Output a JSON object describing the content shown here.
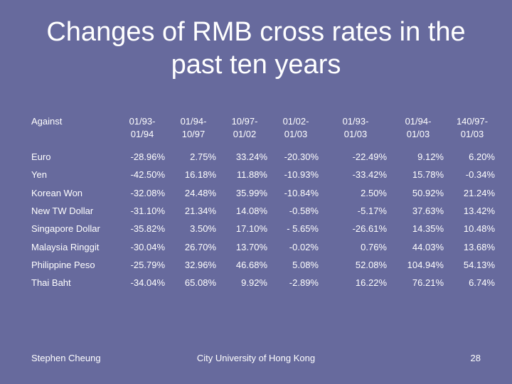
{
  "title": {
    "line1": "Changes of RMB cross rates in the",
    "line2": "past ten years"
  },
  "table": {
    "row_header": "Against",
    "columns": [
      [
        "01/93-",
        "01/94"
      ],
      [
        "01/94-",
        "10/97"
      ],
      [
        "10/97-",
        "01/02"
      ],
      [
        "01/02-",
        "01/03"
      ],
      [
        "01/93-",
        "01/03"
      ],
      [
        "01/94-",
        "01/03"
      ],
      [
        "140/97-",
        "01/03"
      ]
    ],
    "rows": [
      {
        "label": "Euro",
        "values": [
          "-28.96%",
          "2.75%",
          "33.24%",
          "-20.30%",
          "-22.49%",
          "9.12%",
          "6.20%"
        ]
      },
      {
        "label": "Yen",
        "values": [
          "-42.50%",
          "16.18%",
          "11.88%",
          "-10.93%",
          "-33.42%",
          "15.78%",
          "-0.34%"
        ]
      },
      {
        "label": "Korean Won",
        "values": [
          "-32.08%",
          "24.48%",
          "35.99%",
          "-10.84%",
          "2.50%",
          "50.92%",
          "21.24%"
        ]
      },
      {
        "label": "New TW Dollar",
        "values": [
          "-31.10%",
          "21.34%",
          "14.08%",
          "-0.58%",
          "-5.17%",
          "37.63%",
          "13.42%"
        ]
      },
      {
        "label": "Singapore Dollar",
        "values": [
          "-35.82%",
          "3.50%",
          "17.10%",
          "- 5.65%",
          "-26.61%",
          "14.35%",
          "10.48%"
        ]
      },
      {
        "label": "Malaysia Ringgit",
        "values": [
          "-30.04%",
          "26.70%",
          "13.70%",
          "-0.02%",
          "0.76%",
          "44.03%",
          "13.68%"
        ]
      },
      {
        "label": "Philippine Peso",
        "values": [
          "-25.79%",
          "32.96%",
          "46.68%",
          "5.08%",
          "52.08%",
          "104.94%",
          "54.13%"
        ]
      },
      {
        "label": "Thai Baht",
        "values": [
          "-34.04%",
          "65.08%",
          "9.92%",
          "-2.89%",
          "16.22%",
          "76.21%",
          "6.74%"
        ]
      }
    ]
  },
  "footer": {
    "author": "Stephen Cheung",
    "institution": "City University of Hong Kong",
    "page_number": "28"
  }
}
